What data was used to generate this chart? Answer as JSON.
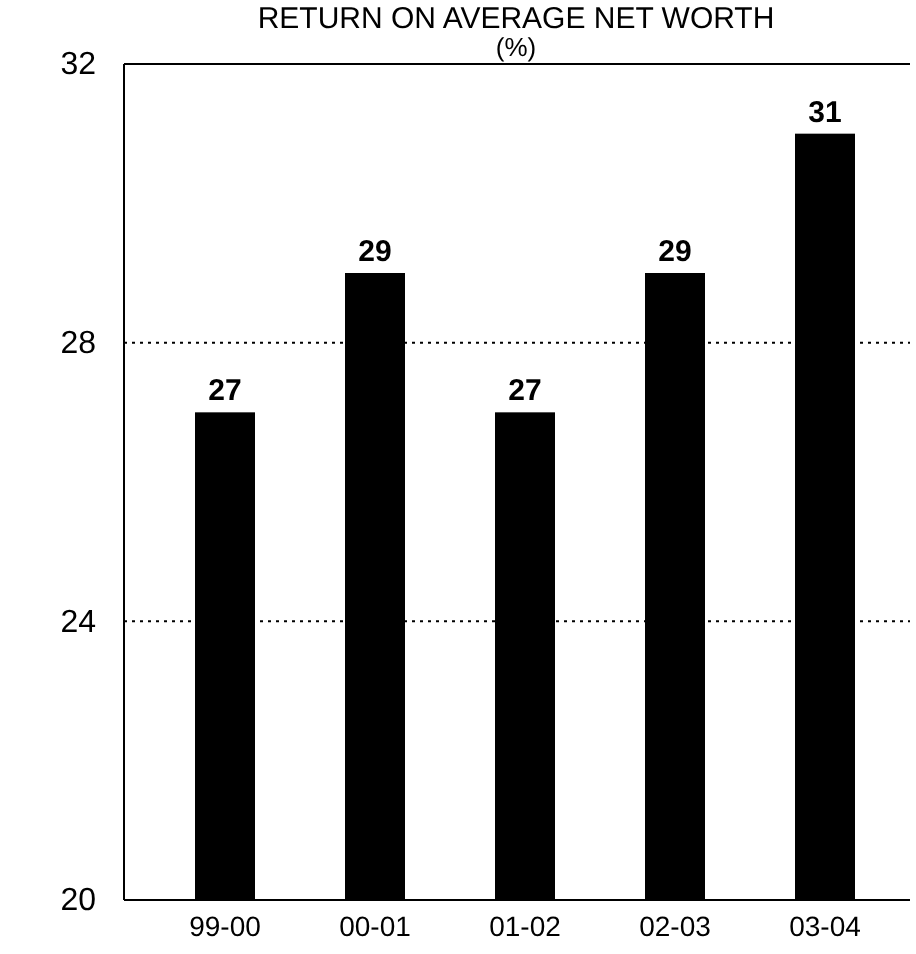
{
  "chart_data": {
    "type": "bar",
    "title": "RETURN ON AVERAGE NET WORTH",
    "subtitle": "(%)",
    "categories": [
      "99-00",
      "00-01",
      "01-02",
      "02-03",
      "03-04"
    ],
    "values": [
      27,
      29,
      27,
      29,
      31
    ],
    "color": "#000000",
    "ylim": [
      20,
      32
    ],
    "yticks": [
      20,
      24,
      28,
      32
    ],
    "grid": "y",
    "data_labels": true
  }
}
